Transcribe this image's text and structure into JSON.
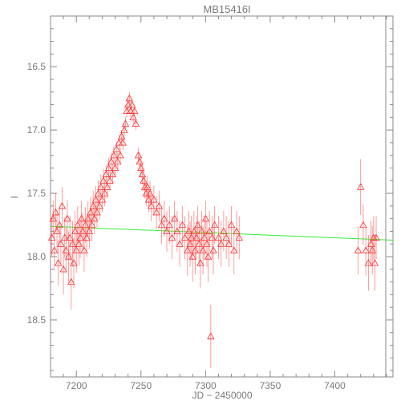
{
  "chart_data": {
    "type": "scatter",
    "title": "MB15416I",
    "xlabel": "JD − 2450000",
    "ylabel": "I",
    "xlim": [
      7180,
      7445
    ],
    "ylim": [
      18.95,
      16.1
    ],
    "y_inverted": true,
    "x_ticks": [
      7200,
      7250,
      7300,
      7350,
      7400
    ],
    "y_ticks": [
      16.5,
      17.0,
      17.5,
      18.0,
      18.5
    ],
    "marker": "triangle-open",
    "colors": {
      "points": "#ff2a2a",
      "errorbars": "#ff5a5a",
      "trend": "#33ee33",
      "axes": "#8a8a8a"
    },
    "trend_line": {
      "x": [
        7180,
        7445
      ],
      "y": [
        17.76,
        17.87
      ]
    },
    "series": [
      {
        "x": [
          7181,
          7182,
          7183,
          7184,
          7185,
          7186,
          7187,
          7188,
          7189,
          7190,
          7191,
          7192,
          7193,
          7194,
          7195,
          7196,
          7197,
          7198,
          7199,
          7200,
          7201,
          7202,
          7203,
          7204,
          7205,
          7206,
          7207,
          7208,
          7209,
          7210,
          7211,
          7212,
          7213,
          7214,
          7215,
          7216,
          7217,
          7218,
          7219,
          7220,
          7221,
          7222,
          7223,
          7224,
          7225,
          7226,
          7227,
          7228,
          7229,
          7230,
          7231,
          7232,
          7233,
          7234,
          7235,
          7236,
          7237,
          7238,
          7239,
          7240,
          7241,
          7242,
          7243,
          7244,
          7245,
          7246,
          7248,
          7249,
          7250,
          7251,
          7252,
          7253,
          7254,
          7255,
          7256,
          7257,
          7258,
          7260,
          7262,
          7264,
          7266,
          7268,
          7270,
          7272,
          7274,
          7276,
          7278,
          7280,
          7282,
          7284,
          7286,
          7287,
          7288,
          7289,
          7290,
          7291,
          7292,
          7293,
          7294,
          7295,
          7296,
          7297,
          7298,
          7299,
          7300,
          7301,
          7302,
          7303,
          7304,
          7305,
          7306,
          7307,
          7310,
          7312,
          7314,
          7316,
          7318,
          7320,
          7322,
          7324,
          7326,
          7418,
          7420,
          7422,
          7424,
          7426,
          7428,
          7429,
          7430,
          7431,
          7432
        ],
        "y": [
          17.85,
          17.7,
          17.95,
          17.65,
          17.8,
          18.05,
          17.75,
          17.9,
          17.6,
          18.1,
          17.85,
          17.95,
          17.7,
          18.0,
          17.85,
          18.2,
          17.9,
          18.05,
          17.8,
          17.95,
          17.75,
          17.9,
          17.85,
          17.7,
          17.8,
          17.95,
          17.75,
          17.85,
          17.7,
          17.8,
          17.65,
          17.75,
          17.6,
          17.7,
          17.55,
          17.65,
          17.5,
          17.6,
          17.45,
          17.55,
          17.4,
          17.5,
          17.35,
          17.45,
          17.3,
          17.4,
          17.25,
          17.35,
          17.2,
          17.3,
          17.15,
          17.25,
          17.1,
          17.2,
          17.05,
          17.1,
          17.0,
          16.95,
          16.85,
          16.8,
          16.75,
          16.85,
          16.8,
          16.9,
          16.85,
          16.95,
          17.2,
          17.25,
          17.3,
          17.35,
          17.4,
          17.45,
          17.5,
          17.45,
          17.55,
          17.5,
          17.6,
          17.55,
          17.65,
          17.6,
          17.75,
          17.7,
          17.8,
          17.75,
          17.85,
          17.7,
          17.8,
          17.9,
          17.75,
          17.85,
          17.95,
          17.8,
          17.9,
          17.85,
          18.0,
          17.8,
          17.95,
          17.85,
          17.75,
          17.9,
          18.05,
          17.8,
          17.95,
          17.85,
          17.7,
          17.9,
          18.0,
          17.8,
          18.63,
          17.85,
          17.95,
          17.75,
          17.85,
          17.9,
          17.8,
          17.85,
          17.9,
          17.75,
          17.95,
          17.8,
          17.85,
          17.95,
          17.45,
          17.75,
          17.95,
          18.05,
          17.9,
          17.95,
          17.85,
          18.05,
          17.85
        ],
        "err": [
          0.15,
          0.14,
          0.16,
          0.15,
          0.15,
          0.18,
          0.14,
          0.16,
          0.15,
          0.2,
          0.16,
          0.18,
          0.15,
          0.2,
          0.17,
          0.22,
          0.18,
          0.2,
          0.16,
          0.18,
          0.15,
          0.17,
          0.16,
          0.14,
          0.15,
          0.17,
          0.14,
          0.15,
          0.14,
          0.14,
          0.12,
          0.13,
          0.12,
          0.12,
          0.11,
          0.12,
          0.1,
          0.11,
          0.1,
          0.1,
          0.09,
          0.1,
          0.08,
          0.09,
          0.08,
          0.08,
          0.07,
          0.08,
          0.07,
          0.07,
          0.06,
          0.07,
          0.06,
          0.06,
          0.05,
          0.06,
          0.05,
          0.05,
          0.05,
          0.05,
          0.05,
          0.05,
          0.05,
          0.05,
          0.05,
          0.05,
          0.06,
          0.07,
          0.07,
          0.08,
          0.08,
          0.09,
          0.1,
          0.09,
          0.1,
          0.1,
          0.12,
          0.11,
          0.13,
          0.12,
          0.15,
          0.14,
          0.16,
          0.15,
          0.17,
          0.14,
          0.16,
          0.18,
          0.15,
          0.17,
          0.2,
          0.16,
          0.18,
          0.17,
          0.2,
          0.16,
          0.19,
          0.17,
          0.15,
          0.18,
          0.2,
          0.16,
          0.19,
          0.17,
          0.14,
          0.18,
          0.2,
          0.16,
          0.25,
          0.17,
          0.19,
          0.15,
          0.17,
          0.18,
          0.16,
          0.17,
          0.18,
          0.15,
          0.19,
          0.16,
          0.17,
          0.19,
          0.22,
          0.16,
          0.2,
          0.22,
          0.18,
          0.19,
          0.17,
          0.22,
          0.17
        ]
      }
    ]
  }
}
